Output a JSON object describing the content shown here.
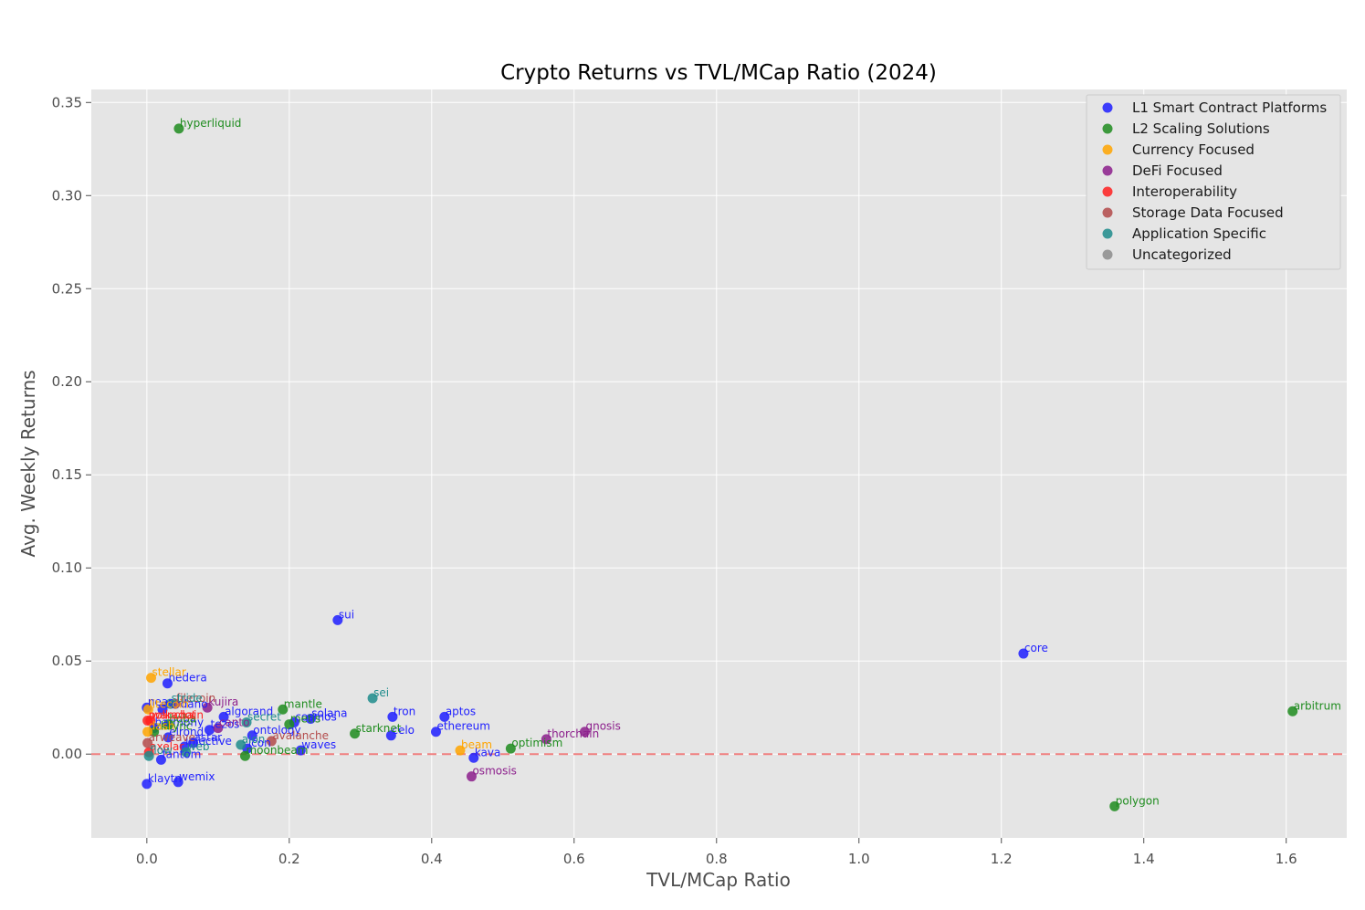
{
  "chart_data": {
    "type": "scatter",
    "title": "Crypto Returns vs TVL/MCap Ratio (2024)",
    "xlabel": "TVL/MCap Ratio",
    "ylabel": "Avg. Weekly Returns",
    "xlim": [
      -0.078,
      1.685
    ],
    "ylim": [
      -0.045,
      0.357
    ],
    "xticks": [
      0.0,
      0.2,
      0.4,
      0.6,
      0.8,
      1.0,
      1.2,
      1.4,
      1.6
    ],
    "xtick_labels": [
      "0.0",
      "0.2",
      "0.4",
      "0.6",
      "0.8",
      "1.0",
      "1.2",
      "1.4",
      "1.6"
    ],
    "yticks": [
      0.0,
      0.05,
      0.1,
      0.15,
      0.2,
      0.25,
      0.3,
      0.35
    ],
    "ytick_labels": [
      "0.00",
      "0.05",
      "0.10",
      "0.15",
      "0.20",
      "0.25",
      "0.30",
      "0.35"
    ],
    "grid": true,
    "reference_line": {
      "y": 0.0,
      "style": "dashed",
      "color": "#f08080"
    },
    "legend_position": "top-right",
    "series": [
      {
        "name": "L1 Smart Contract Platforms",
        "color": "#1f1fff",
        "points": [
          {
            "label": "sui",
            "x": 0.268,
            "y": 0.072
          },
          {
            "label": "core",
            "x": 1.231,
            "y": 0.054
          },
          {
            "label": "hedera",
            "x": 0.029,
            "y": 0.038
          },
          {
            "label": "tron",
            "x": 0.345,
            "y": 0.02
          },
          {
            "label": "aptos",
            "x": 0.418,
            "y": 0.02
          },
          {
            "label": "solana",
            "x": 0.23,
            "y": 0.019
          },
          {
            "label": "cosmos",
            "x": 0.207,
            "y": 0.017
          },
          {
            "label": "ethereum",
            "x": 0.406,
            "y": 0.012
          },
          {
            "label": "celo",
            "x": 0.343,
            "y": 0.01
          },
          {
            "label": "kava",
            "x": 0.459,
            "y": -0.002
          },
          {
            "label": "waves",
            "x": 0.216,
            "y": 0.002
          },
          {
            "label": "algorand",
            "x": 0.108,
            "y": 0.02
          },
          {
            "label": "ontology",
            "x": 0.148,
            "y": 0.01
          },
          {
            "label": "klaytn",
            "x": 0.0,
            "y": -0.016
          },
          {
            "label": "wemix",
            "x": 0.044,
            "y": -0.015
          },
          {
            "label": "injective",
            "x": 0.053,
            "y": 0.004
          },
          {
            "label": "astar",
            "x": 0.065,
            "y": 0.006
          },
          {
            "label": "near",
            "x": 0.0,
            "y": 0.025
          },
          {
            "label": "tezos",
            "x": 0.088,
            "y": 0.013
          },
          {
            "label": "icon",
            "x": 0.141,
            "y": 0.003
          },
          {
            "label": "elrond",
            "x": 0.03,
            "y": 0.009
          },
          {
            "label": "cardano",
            "x": 0.022,
            "y": 0.024
          },
          {
            "label": "fantom",
            "x": 0.02,
            "y": -0.003
          },
          {
            "label": "harmony",
            "x": 0.01,
            "y": 0.014
          }
        ]
      },
      {
        "name": "L2 Scaling Solutions",
        "color": "#1f8c1f",
        "points": [
          {
            "label": "hyperliquid",
            "x": 0.045,
            "y": 0.336
          },
          {
            "label": "arbitrum",
            "x": 1.609,
            "y": 0.023
          },
          {
            "label": "polygon",
            "x": 1.359,
            "y": -0.028
          },
          {
            "label": "mantle",
            "x": 0.191,
            "y": 0.024
          },
          {
            "label": "starknet",
            "x": 0.292,
            "y": 0.011
          },
          {
            "label": "optimism",
            "x": 0.511,
            "y": 0.003
          },
          {
            "label": "moonbeam",
            "x": 0.138,
            "y": -0.001
          },
          {
            "label": "metis",
            "x": 0.2,
            "y": 0.016
          },
          {
            "label": "boba",
            "x": 0.03,
            "y": 0.016
          },
          {
            "label": "zksync",
            "x": 0.01,
            "y": 0.012
          }
        ]
      },
      {
        "name": "Currency Focused",
        "color": "#ffa500",
        "points": [
          {
            "label": "stellar",
            "x": 0.006,
            "y": 0.041
          },
          {
            "label": "beam",
            "x": 0.44,
            "y": 0.002
          },
          {
            "label": "litecoin",
            "x": 0.002,
            "y": 0.024
          },
          {
            "label": "dash",
            "x": 0.001,
            "y": 0.012
          }
        ]
      },
      {
        "name": "DeFi Focused",
        "color": "#8c1f8c",
        "points": [
          {
            "label": "gnosis",
            "x": 0.615,
            "y": 0.012
          },
          {
            "label": "thorchain",
            "x": 0.561,
            "y": 0.008
          },
          {
            "label": "osmosis",
            "x": 0.456,
            "y": -0.012
          },
          {
            "label": "kujira",
            "x": 0.085,
            "y": 0.025
          },
          {
            "label": "canto",
            "x": 0.1,
            "y": 0.014
          }
        ]
      },
      {
        "name": "Interoperability",
        "color": "#ff2020",
        "points": [
          {
            "label": "polkadot",
            "x": 0.001,
            "y": 0.018
          },
          {
            "label": "axelar",
            "x": 0.003,
            "y": 0.001
          },
          {
            "label": "wanchain",
            "x": 0.005,
            "y": 0.018
          }
        ]
      },
      {
        "name": "Storage Data Focused",
        "color": "#b34a4a",
        "points": [
          {
            "label": "filecoin",
            "x": 0.04,
            "y": 0.027
          },
          {
            "label": "avalanche",
            "x": 0.175,
            "y": 0.007
          },
          {
            "label": "arweave",
            "x": 0.001,
            "y": 0.006
          }
        ]
      },
      {
        "name": "Application Specific",
        "color": "#1f8c8c",
        "points": [
          {
            "label": "sei",
            "x": 0.317,
            "y": 0.03
          },
          {
            "label": "secret",
            "x": 0.14,
            "y": 0.017
          },
          {
            "label": "web",
            "x": 0.055,
            "y": 0.001
          },
          {
            "label": "aion",
            "x": 0.132,
            "y": 0.005
          },
          {
            "label": "stride",
            "x": 0.033,
            "y": 0.027
          },
          {
            "label": "flow",
            "x": 0.003,
            "y": -0.001
          }
        ]
      },
      {
        "name": "Uncategorized",
        "color": "#8c8c8c",
        "points": []
      }
    ]
  }
}
